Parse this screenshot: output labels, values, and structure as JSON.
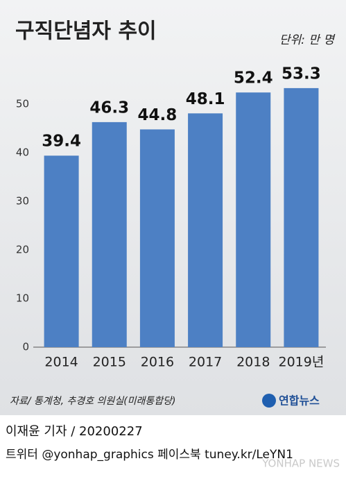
{
  "chart_data": {
    "type": "bar",
    "title": "구직단념자 추이",
    "unit": "단위: 만 명",
    "categories": [
      "2014",
      "2015",
      "2016",
      "2017",
      "2018",
      "2019년"
    ],
    "values": [
      39.4,
      46.3,
      44.8,
      48.1,
      52.4,
      53.3
    ],
    "color": "#4d80c4",
    "ylim": [
      0,
      55
    ],
    "yticks": [
      0,
      10,
      20,
      30,
      40,
      50
    ],
    "grid": false,
    "source": "자료/ 통계청, 추경호 의원실(미래통합당)",
    "logo": "연합뉴스"
  },
  "footer": {
    "byline": "이재윤 기자 / 20200227",
    "social": "트위터 @yonhap_graphics  페이스북 tuney.kr/LeYN1",
    "watermark": "YONHAP NEWS"
  }
}
